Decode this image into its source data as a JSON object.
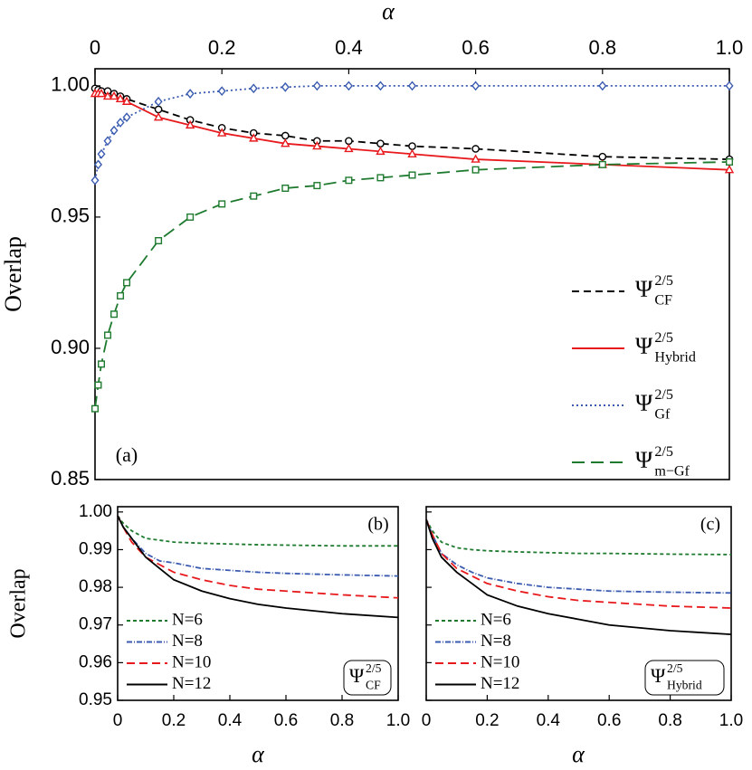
{
  "chart_data": [
    {
      "type": "line",
      "x_label": "α",
      "y_label": "Overlap",
      "panel_label": "(a)",
      "x_axis_side": "top",
      "legend": "right",
      "ytick_labels": true,
      "x": [
        0,
        0.005,
        0.01,
        0.02,
        0.03,
        0.04,
        0.05,
        0.1,
        0.15,
        0.2,
        0.25,
        0.3,
        0.35,
        0.4,
        0.45,
        0.5,
        0.6,
        0.8,
        1.0
      ],
      "xlim": [
        0,
        1
      ],
      "xticks": [
        0,
        0.2,
        0.4,
        0.6,
        0.8,
        {
          "value": 1,
          "label": "1.0"
        }
      ],
      "ylim": [
        0.85,
        1.0065
      ],
      "yticks": [
        0.85,
        {
          "value": 0.9,
          "label": "0.90"
        },
        0.95,
        {
          "value": 1,
          "label": "1.00"
        }
      ],
      "series": [
        {
          "name": "Ψ",
          "name_sup": "2/5",
          "name_sub": "CF",
          "color": "#000000",
          "dash": "8,5",
          "marker": "circle",
          "values": [
            0.999,
            0.9985,
            0.998,
            0.998,
            0.997,
            0.996,
            0.995,
            0.991,
            0.987,
            0.984,
            0.982,
            0.981,
            0.979,
            0.979,
            0.978,
            0.977,
            0.976,
            0.973,
            0.972
          ]
        },
        {
          "name": "Ψ",
          "name_sup": "2/5",
          "name_sub": "Hybrid",
          "color": "#e8191c",
          "dash": "none",
          "marker": "triangle",
          "values": [
            0.997,
            0.997,
            0.997,
            0.996,
            0.996,
            0.995,
            0.994,
            0.988,
            0.985,
            0.982,
            0.98,
            0.978,
            0.977,
            0.976,
            0.975,
            0.974,
            0.972,
            0.97,
            0.968
          ]
        },
        {
          "name": "Ψ",
          "name_sup": "2/5",
          "name_sub": "Gf",
          "color": "#3a5bb0",
          "dash": "2,3",
          "marker": "diamond",
          "values": [
            0.964,
            0.97,
            0.974,
            0.979,
            0.983,
            0.986,
            0.988,
            0.994,
            0.997,
            0.998,
            0.999,
            0.9995,
            1.0,
            1.0,
            1.0,
            1.0,
            1.0,
            1.0,
            1.0
          ]
        },
        {
          "name": "Ψ",
          "name_sup": "2/5",
          "name_sub": "m−Gf",
          "color": "#1e7a2e",
          "dash": "14,7",
          "marker": "square",
          "values": [
            0.877,
            0.886,
            0.894,
            0.905,
            0.913,
            0.92,
            0.925,
            0.941,
            0.95,
            0.955,
            0.958,
            0.961,
            0.962,
            0.964,
            0.965,
            0.966,
            0.968,
            0.97,
            0.971
          ]
        }
      ]
    },
    {
      "type": "line",
      "x_label": "α",
      "y_label": "Overlap",
      "panel_label": "(b)",
      "x_axis_side": "bottom",
      "legend": "lower left",
      "ytick_labels": true,
      "annotation": {
        "base": "Ψ",
        "sup": "2/5",
        "sub": "CF"
      },
      "x": [
        0,
        0.02,
        0.05,
        0.1,
        0.15,
        0.2,
        0.3,
        0.4,
        0.5,
        0.6,
        0.8,
        1.0
      ],
      "xlim": [
        0,
        1
      ],
      "xticks": [
        0,
        0.2,
        0.4,
        0.6,
        0.8,
        {
          "value": 1,
          "label": "1.0"
        }
      ],
      "ylim": [
        0.95,
        1.0014
      ],
      "yticks": [
        0.95,
        0.96,
        0.97,
        0.98,
        0.99,
        {
          "value": 1,
          "label": "1.00"
        }
      ],
      "series": [
        {
          "name": "N=6",
          "color": "#1e7a2e",
          "dash": "4,3",
          "values": [
            0.999,
            0.997,
            0.995,
            0.993,
            0.9925,
            0.992,
            0.9917,
            0.9915,
            0.9913,
            0.9912,
            0.991,
            0.991
          ]
        },
        {
          "name": "N=8",
          "color": "#3a5bb0",
          "dash": "6,2,1,2",
          "values": [
            0.999,
            0.996,
            0.993,
            0.989,
            0.987,
            0.9865,
            0.985,
            0.9845,
            0.984,
            0.9837,
            0.9833,
            0.983
          ]
        },
        {
          "name": "N=10",
          "color": "#e8191c",
          "dash": "9,5",
          "values": [
            0.999,
            0.996,
            0.992,
            0.988,
            0.986,
            0.984,
            0.982,
            0.9805,
            0.9795,
            0.979,
            0.978,
            0.9772
          ]
        },
        {
          "name": "N=12",
          "color": "#000000",
          "dash": "none",
          "values": [
            0.999,
            0.996,
            0.993,
            0.988,
            0.985,
            0.982,
            0.979,
            0.977,
            0.9755,
            0.9745,
            0.973,
            0.972
          ]
        }
      ]
    },
    {
      "type": "line",
      "x_label": "α",
      "panel_label": "(c)",
      "x_axis_side": "bottom",
      "legend": "lower left",
      "ytick_labels": false,
      "annotation": {
        "base": "Ψ",
        "sup": "2/5",
        "sub": "Hybrid"
      },
      "x": [
        0,
        0.02,
        0.05,
        0.1,
        0.15,
        0.2,
        0.3,
        0.4,
        0.5,
        0.6,
        0.8,
        1.0
      ],
      "xlim": [
        0,
        1
      ],
      "xticks": [
        0,
        0.2,
        0.4,
        0.6,
        0.8,
        {
          "value": 1,
          "label": "1.0"
        }
      ],
      "ylim": [
        0.95,
        1.0014
      ],
      "yticks": [
        0.95,
        0.96,
        0.97,
        0.98,
        0.99,
        1
      ],
      "series": [
        {
          "name": "N=6",
          "color": "#1e7a2e",
          "dash": "4,3",
          "values": [
            0.998,
            0.995,
            0.992,
            0.9905,
            0.99,
            0.9897,
            0.9894,
            0.9892,
            0.989,
            0.989,
            0.9888,
            0.9887
          ]
        },
        {
          "name": "N=8",
          "color": "#3a5bb0",
          "dash": "6,2,1,2",
          "values": [
            0.998,
            0.994,
            0.989,
            0.986,
            0.984,
            0.9825,
            0.981,
            0.98,
            0.9795,
            0.979,
            0.9787,
            0.9785
          ]
        },
        {
          "name": "N=10",
          "color": "#e8191c",
          "dash": "9,5",
          "values": [
            0.998,
            0.994,
            0.989,
            0.985,
            0.983,
            0.981,
            0.979,
            0.9775,
            0.9765,
            0.976,
            0.975,
            0.9745
          ]
        },
        {
          "name": "N=12",
          "color": "#000000",
          "dash": "none",
          "values": [
            0.998,
            0.993,
            0.988,
            0.984,
            0.981,
            0.978,
            0.975,
            0.973,
            0.9715,
            0.97,
            0.9685,
            0.9675
          ]
        }
      ]
    }
  ]
}
